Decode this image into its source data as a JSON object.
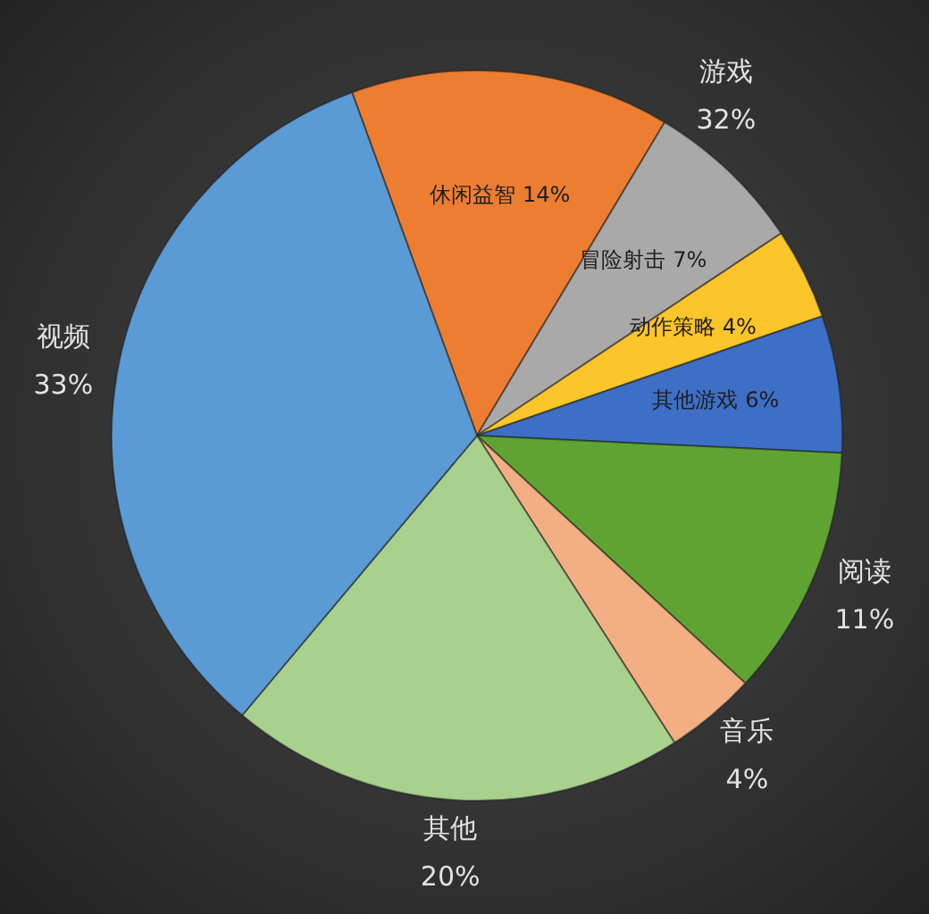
{
  "chart_data": {
    "type": "pie",
    "categories": [
      "休闲益智",
      "冒险射击",
      "动作策略",
      "其他游戏",
      "阅读",
      "音乐",
      "其他",
      "视频"
    ],
    "values": [
      14,
      7,
      4,
      6,
      11,
      4,
      20,
      33
    ],
    "colors": [
      "#ed7d31",
      "#a9a9a9",
      "#fcc52a",
      "#3d6fc6",
      "#5fa433",
      "#f3af84",
      "#a8d18d",
      "#5b9bd5"
    ],
    "value_labels": [
      "14%",
      "7%",
      "4%",
      "6%",
      "11%",
      "4%",
      "20%",
      "33%"
    ],
    "annotations": [
      "游戏 32%"
    ]
  }
}
